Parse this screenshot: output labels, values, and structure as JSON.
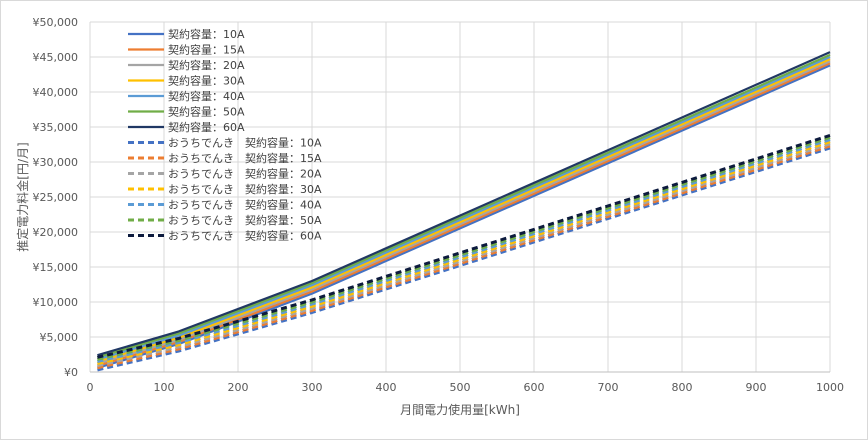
{
  "chart_data": {
    "type": "line",
    "title": "",
    "xlabel": "月間電力使用量[kWh]",
    "ylabel": "推定電力料金[円/月]",
    "xlim": [
      0,
      1000
    ],
    "ylim": [
      0,
      50000
    ],
    "x_ticks": [
      0,
      100,
      200,
      300,
      400,
      500,
      600,
      700,
      800,
      900,
      1000
    ],
    "x_tick_labels": [
      "0",
      "100",
      "200",
      "300",
      "400",
      "500",
      "600",
      "700",
      "800",
      "900",
      "1000"
    ],
    "y_ticks": [
      0,
      5000,
      10000,
      15000,
      20000,
      25000,
      30000,
      35000,
      40000,
      45000,
      50000
    ],
    "y_tick_labels": [
      "¥0",
      "¥5,000",
      "¥10,000",
      "¥15,000",
      "¥20,000",
      "¥25,000",
      "¥30,000",
      "¥35,000",
      "¥40,000",
      "¥45,000",
      "¥50,000"
    ],
    "grid": true,
    "legend_position": "top-left",
    "x": [
      10,
      120,
      300,
      1000
    ],
    "series": [
      {
        "name": "契約容量：10A",
        "color": "#4472C4",
        "dashed": false,
        "values": [
          600,
          4000,
          11200,
          43800
        ]
      },
      {
        "name": "契約容量：15A",
        "color": "#ED7D31",
        "dashed": false,
        "values": [
          900,
          4300,
          11500,
          44100
        ]
      },
      {
        "name": "契約容量：20A",
        "color": "#A5A5A5",
        "dashed": false,
        "values": [
          1200,
          4600,
          11800,
          44400
        ]
      },
      {
        "name": "契約容量：30A",
        "color": "#FFC000",
        "dashed": false,
        "values": [
          1500,
          4900,
          12100,
          44700
        ]
      },
      {
        "name": "契約容量：40A",
        "color": "#5B9BD5",
        "dashed": false,
        "values": [
          1800,
          5200,
          12400,
          45000
        ]
      },
      {
        "name": "契約容量：50A",
        "color": "#70AD47",
        "dashed": false,
        "values": [
          2100,
          5500,
          12700,
          45300
        ]
      },
      {
        "name": "契約容量：60A",
        "color": "#203864",
        "dashed": false,
        "values": [
          2400,
          5800,
          13000,
          45700
        ]
      },
      {
        "name": "おうちでんき　契約容量：10A",
        "color": "#4472C4",
        "dashed": true,
        "values": [
          300,
          3000,
          8500,
          32000
        ]
      },
      {
        "name": "おうちでんき　契約容量：15A",
        "color": "#ED7D31",
        "dashed": true,
        "values": [
          600,
          3300,
          8800,
          32300
        ]
      },
      {
        "name": "おうちでんき　契約容量：20A",
        "color": "#A5A5A5",
        "dashed": true,
        "values": [
          900,
          3600,
          9100,
          32600
        ]
      },
      {
        "name": "おうちでんき　契約容量：30A",
        "color": "#FFC000",
        "dashed": true,
        "values": [
          1200,
          3900,
          9400,
          32900
        ]
      },
      {
        "name": "おうちでんき　契約容量：40A",
        "color": "#5B9BD5",
        "dashed": true,
        "values": [
          1500,
          4200,
          9700,
          33200
        ]
      },
      {
        "name": "おうちでんき　契約容量：50A",
        "color": "#70AD47",
        "dashed": true,
        "values": [
          1800,
          4500,
          10000,
          33500
        ]
      },
      {
        "name": "おうちでんき　契約容量：60A",
        "color": "#0D1B3E",
        "dashed": true,
        "values": [
          2100,
          4800,
          10300,
          33800
        ]
      }
    ]
  }
}
